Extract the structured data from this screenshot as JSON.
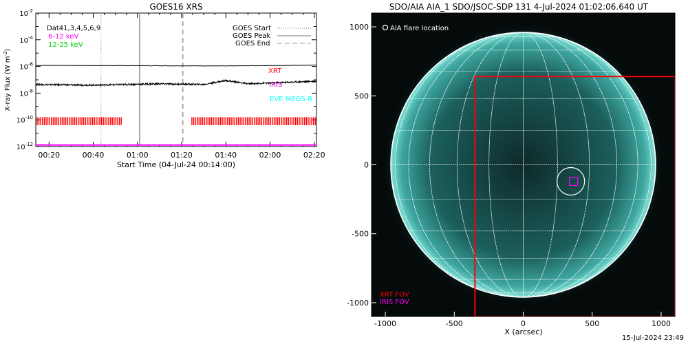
{
  "footer": "15-Jul-2024 23:49",
  "chart_data": [
    {
      "type": "line",
      "title": "GOES16 XRS",
      "xlabel": "Start Time (04-Jul-24 00:14:00)",
      "ylabel": "X-ray Flux (W m",
      "ylabel_sup": "-2",
      "ylabel_close": ")",
      "ylim_log10": [
        -12,
        -2
      ],
      "xlim_minutes_after_00_00": [
        14,
        141
      ],
      "x_tick_labels": [
        "00:20",
        "00:40",
        "01:00",
        "01:20",
        "01:40",
        "02:00",
        "02:20"
      ],
      "x_tick_minutes": [
        20,
        40,
        60,
        80,
        100,
        120,
        140
      ],
      "y_tick_exponents": [
        -12,
        -10,
        -8,
        -6,
        -4,
        -2
      ],
      "y_tick_base": "10",
      "legend_left": [
        {
          "text": "Dat41,3,4,5,6,9",
          "color": "#000000"
        },
        {
          "text": "6-12 keV",
          "color": "#ff00ff"
        },
        {
          "text": "12-25 keV",
          "color": "#00cc00"
        }
      ],
      "legend_right": [
        {
          "text": "GOES Start",
          "style": "dotted"
        },
        {
          "text": "GOES Peak",
          "style": "solid"
        },
        {
          "text": "GOES End",
          "style": "dashed"
        }
      ],
      "instrument_labels": [
        {
          "text": "XRT",
          "color": "#ff0000"
        },
        {
          "text": "IRIS",
          "color": "#cc00cc"
        },
        {
          "text": "EVE MEGS-R",
          "color": "#00ffff"
        }
      ],
      "vertical_markers": [
        {
          "minute": 43.5,
          "style": "dotted",
          "color": "#888888"
        },
        {
          "minute": 61,
          "style": "solid",
          "color": "#aaaaaa"
        },
        {
          "minute": 80.5,
          "style": "dashed",
          "color": "#aaaaaa"
        }
      ],
      "series": [
        {
          "values_log10_at": [
            [
              14,
              -5.92
            ],
            [
              60,
              -5.94
            ],
            [
              100,
              -5.96
            ],
            [
              141,
              -5.9
            ]
          ],
          "color": "#000000"
        },
        {
          "values_log10_at": [
            [
              14,
              -7.35
            ],
            [
              40,
              -7.4
            ],
            [
              70,
              -7.3
            ],
            [
              90,
              -7.35
            ],
            [
              100,
              -7.05
            ],
            [
              110,
              -7.3
            ],
            [
              141,
              -7.1
            ]
          ],
          "color": "#000000"
        },
        {
          "values_log10_at": [
            [
              14,
              -11.88
            ],
            [
              141,
              -11.88
            ]
          ],
          "color": "#ff00ff"
        }
      ],
      "xrt_coverage_minutes": [
        [
          14,
          53
        ],
        [
          84,
          141
        ]
      ],
      "xrt_coverage_log10": [
        -10.4,
        -9.8
      ]
    },
    {
      "type": "image",
      "title": "SDO/AIA AIA_1 SDO/JSOC-SDP 131  4-Jul-2024 01:02:06.640 UT",
      "xlabel": "X (arcsec)",
      "x_tick_labels": [
        "-1000",
        "-500",
        "0",
        "500",
        "1000"
      ],
      "x_tick_values": [
        -1000,
        -500,
        0,
        500,
        1000
      ],
      "y_tick_labels": [
        "1000",
        "500",
        "0",
        "-500",
        "-1000"
      ],
      "y_tick_values": [
        1000,
        500,
        0,
        -500,
        -1000
      ],
      "xlim": [
        -1100,
        1100
      ],
      "ylim": [
        -1100,
        1100
      ],
      "solar_radius_arcsec": 960,
      "legend": {
        "text": "AIA flare location"
      },
      "fov_labels": [
        {
          "text": "XRT FOV",
          "color": "#ff0000"
        },
        {
          "text": "IRIS FOV",
          "color": "#ff00ff"
        }
      ],
      "xrt_fov": {
        "x": [
          -350,
          1100
        ],
        "y": [
          -1100,
          640
        ]
      },
      "iris_fov": {
        "x": [
          335,
          395
        ],
        "y": [
          -150,
          -90
        ]
      },
      "flare_location": {
        "x": 345,
        "y": -120,
        "r": 100
      }
    }
  ]
}
